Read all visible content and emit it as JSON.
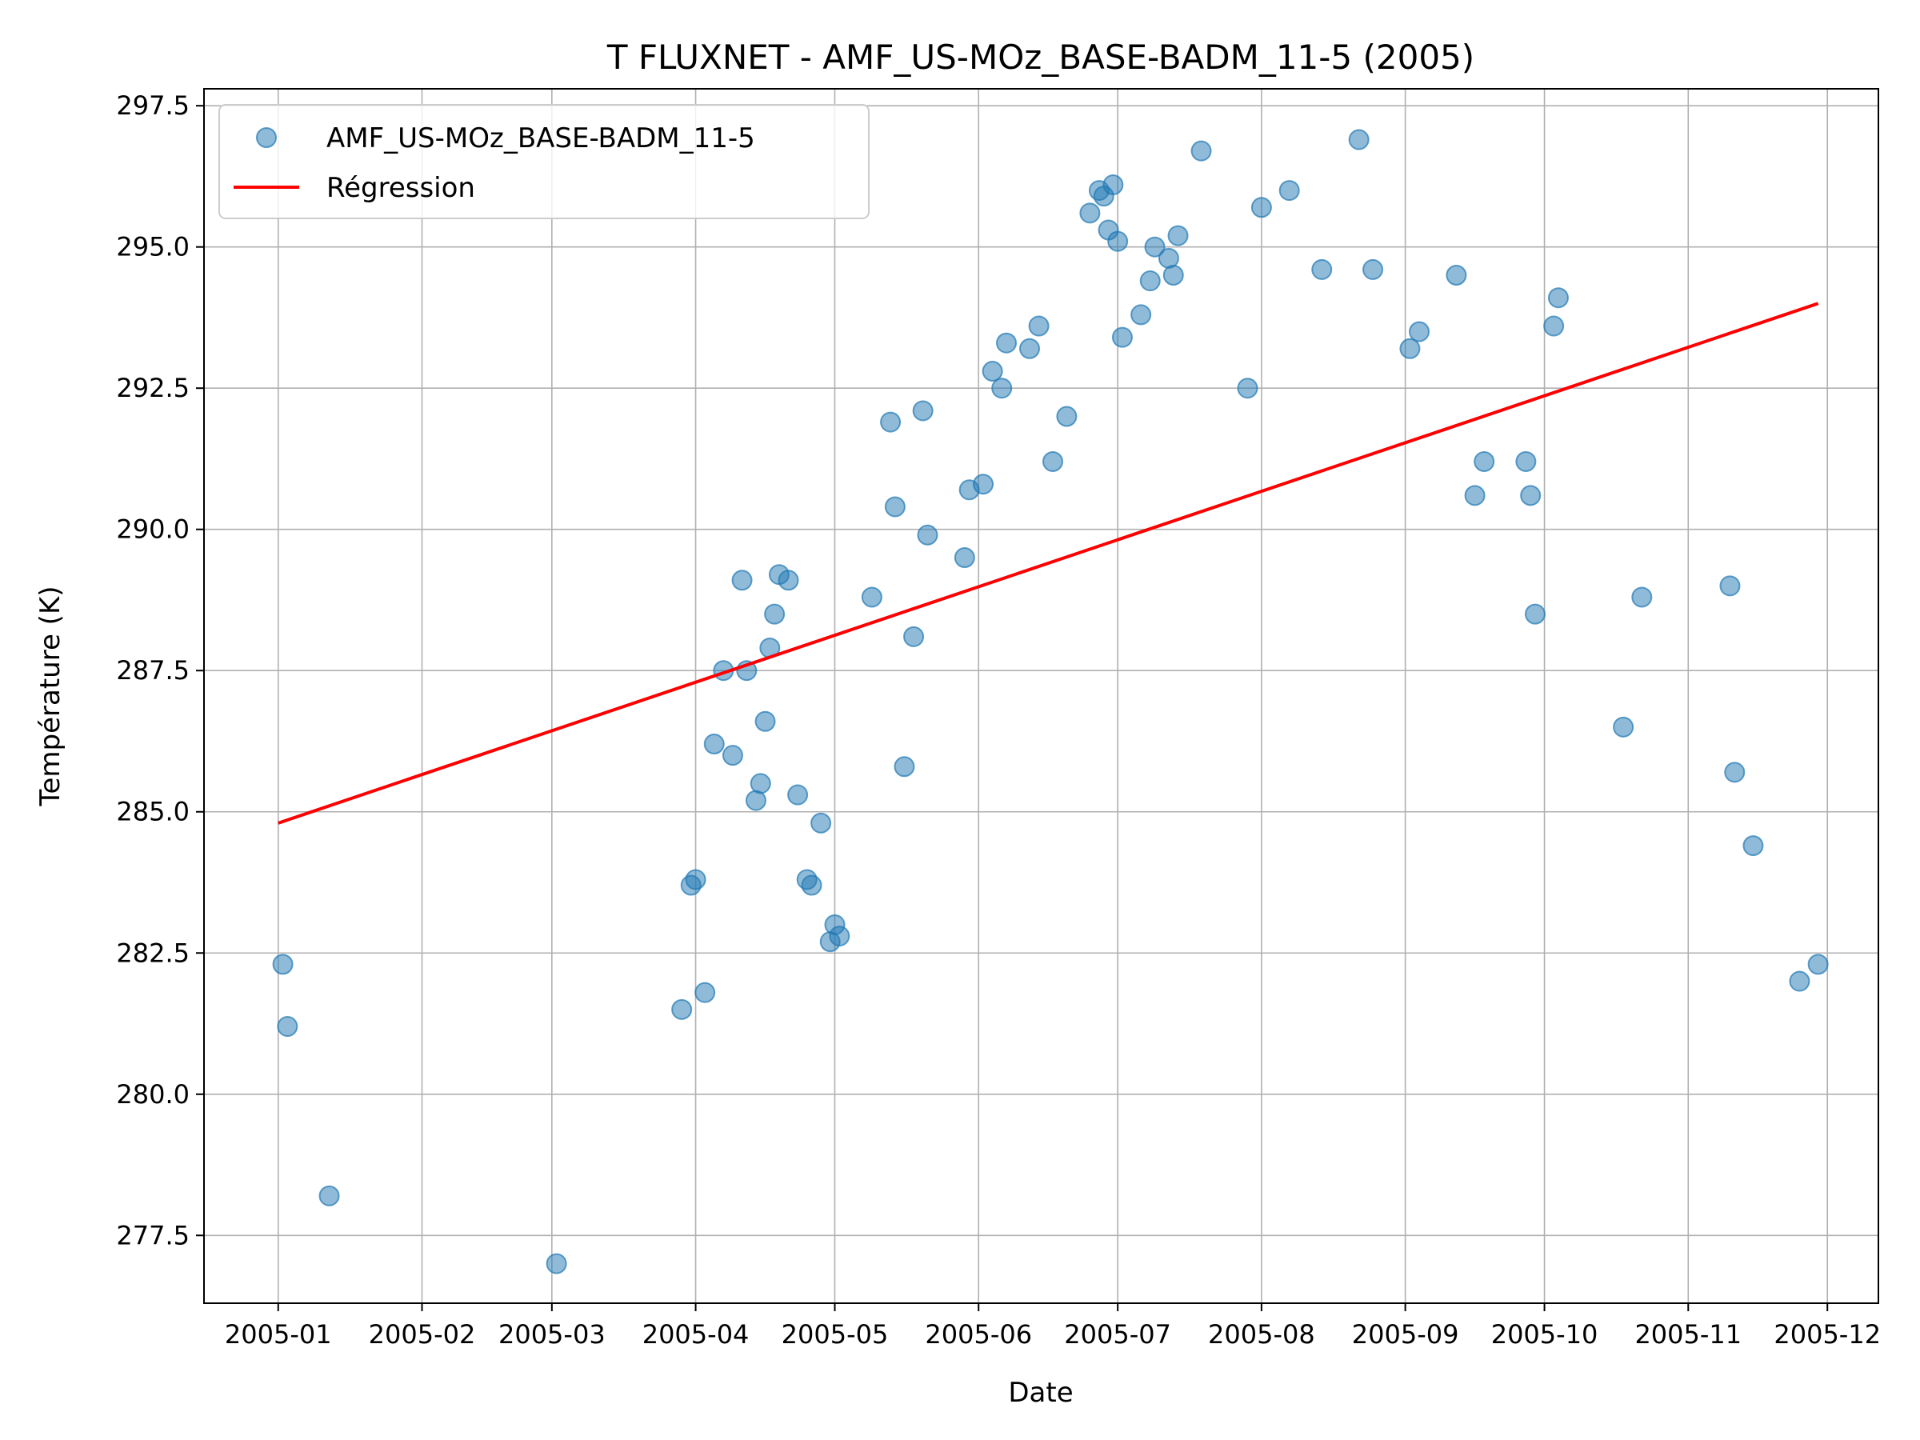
{
  "chart_data": {
    "type": "scatter",
    "title": "T FLUXNET - AMF_US-MOz_BASE-BADM_11-5 (2005)",
    "xlabel": "Date",
    "ylabel": "Température (K)",
    "xlim": [
      "2004-12-16",
      "2005-12-12"
    ],
    "ylim": [
      276.3,
      297.8
    ],
    "x_ticks": [
      "2005-01",
      "2005-02",
      "2005-03",
      "2005-04",
      "2005-05",
      "2005-06",
      "2005-07",
      "2005-08",
      "2005-09",
      "2005-10",
      "2005-11",
      "2005-12"
    ],
    "x_tick_dates": [
      "2005-01-01",
      "2005-02-01",
      "2005-03-01",
      "2005-04-01",
      "2005-05-01",
      "2005-06-01",
      "2005-07-01",
      "2005-08-01",
      "2005-09-01",
      "2005-10-01",
      "2005-11-01",
      "2005-12-01"
    ],
    "y_ticks": [
      277.5,
      280.0,
      282.5,
      285.0,
      287.5,
      290.0,
      292.5,
      295.0,
      297.5
    ],
    "y_tick_labels": [
      "277.5",
      "280.0",
      "282.5",
      "285.0",
      "287.5",
      "290.0",
      "292.5",
      "295.0",
      "297.5"
    ],
    "grid": true,
    "legend_position": "top-left",
    "series": [
      {
        "name": "AMF_US-MOz_BASE-BADM_11-5",
        "kind": "scatter",
        "color": "#1f77b4",
        "points": [
          [
            "2005-01-02",
            282.3
          ],
          [
            "2005-01-03",
            281.2
          ],
          [
            "2005-01-12",
            278.2
          ],
          [
            "2005-03-02",
            277.0
          ],
          [
            "2005-03-29",
            281.5
          ],
          [
            "2005-03-31",
            283.7
          ],
          [
            "2005-04-01",
            283.8
          ],
          [
            "2005-04-03",
            281.8
          ],
          [
            "2005-04-05",
            286.2
          ],
          [
            "2005-04-07",
            287.5
          ],
          [
            "2005-04-09",
            286.0
          ],
          [
            "2005-04-11",
            289.1
          ],
          [
            "2005-04-12",
            287.5
          ],
          [
            "2005-04-14",
            285.2
          ],
          [
            "2005-04-15",
            285.5
          ],
          [
            "2005-04-16",
            286.6
          ],
          [
            "2005-04-17",
            287.9
          ],
          [
            "2005-04-18",
            288.5
          ],
          [
            "2005-04-19",
            289.2
          ],
          [
            "2005-04-21",
            289.1
          ],
          [
            "2005-04-23",
            285.3
          ],
          [
            "2005-04-25",
            283.8
          ],
          [
            "2005-04-26",
            283.7
          ],
          [
            "2005-04-28",
            284.8
          ],
          [
            "2005-04-30",
            282.7
          ],
          [
            "2005-05-01",
            283.0
          ],
          [
            "2005-05-02",
            282.8
          ],
          [
            "2005-05-09",
            288.8
          ],
          [
            "2005-05-13",
            291.9
          ],
          [
            "2005-05-14",
            290.4
          ],
          [
            "2005-05-16",
            285.8
          ],
          [
            "2005-05-18",
            288.1
          ],
          [
            "2005-05-20",
            292.1
          ],
          [
            "2005-05-21",
            289.9
          ],
          [
            "2005-05-29",
            289.5
          ],
          [
            "2005-05-30",
            290.7
          ],
          [
            "2005-06-02",
            290.8
          ],
          [
            "2005-06-04",
            292.8
          ],
          [
            "2005-06-06",
            292.5
          ],
          [
            "2005-06-07",
            293.3
          ],
          [
            "2005-06-12",
            293.2
          ],
          [
            "2005-06-14",
            293.6
          ],
          [
            "2005-06-17",
            291.2
          ],
          [
            "2005-06-20",
            292.0
          ],
          [
            "2005-06-25",
            295.6
          ],
          [
            "2005-06-27",
            296.0
          ],
          [
            "2005-06-28",
            295.9
          ],
          [
            "2005-06-29",
            295.3
          ],
          [
            "2005-06-30",
            296.1
          ],
          [
            "2005-07-01",
            295.1
          ],
          [
            "2005-07-02",
            293.4
          ],
          [
            "2005-07-06",
            293.8
          ],
          [
            "2005-07-08",
            294.4
          ],
          [
            "2005-07-09",
            295.0
          ],
          [
            "2005-07-12",
            294.8
          ],
          [
            "2005-07-13",
            294.5
          ],
          [
            "2005-07-14",
            295.2
          ],
          [
            "2005-07-19",
            296.7
          ],
          [
            "2005-07-29",
            292.5
          ],
          [
            "2005-08-01",
            295.7
          ],
          [
            "2005-08-07",
            296.0
          ],
          [
            "2005-08-14",
            294.6
          ],
          [
            "2005-08-22",
            296.9
          ],
          [
            "2005-08-25",
            294.6
          ],
          [
            "2005-09-02",
            293.2
          ],
          [
            "2005-09-04",
            293.5
          ],
          [
            "2005-09-12",
            294.5
          ],
          [
            "2005-09-16",
            290.6
          ],
          [
            "2005-09-18",
            291.2
          ],
          [
            "2005-09-27",
            291.2
          ],
          [
            "2005-09-28",
            290.6
          ],
          [
            "2005-09-29",
            288.5
          ],
          [
            "2005-10-03",
            293.6
          ],
          [
            "2005-10-04",
            294.1
          ],
          [
            "2005-10-18",
            286.5
          ],
          [
            "2005-10-22",
            288.8
          ],
          [
            "2005-11-10",
            289.0
          ],
          [
            "2005-11-11",
            285.7
          ],
          [
            "2005-11-15",
            284.4
          ],
          [
            "2005-11-25",
            282.0
          ],
          [
            "2005-11-29",
            282.3
          ]
        ]
      },
      {
        "name": "Régression",
        "kind": "line",
        "color": "#ff0000",
        "points": [
          [
            "2005-01-01",
            284.8
          ],
          [
            "2005-11-29",
            294.0
          ]
        ]
      }
    ]
  }
}
